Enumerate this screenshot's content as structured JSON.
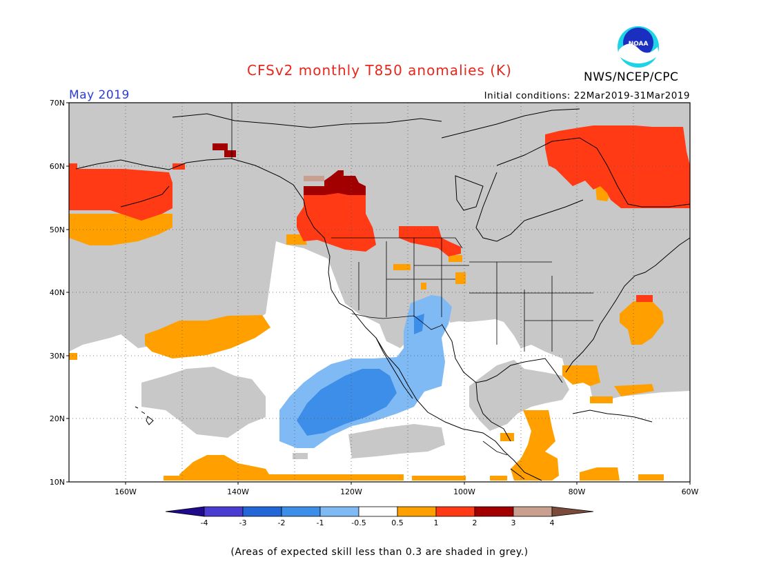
{
  "title": "CFSv2 monthly T850 anomalies (K)",
  "organization": "NWS/NCEP/CPC",
  "logo_text": "NOAA",
  "valid_month": "May 2019",
  "initial_conditions": "Initial conditions: 22Mar2019-31Mar2019",
  "map": {
    "lon_range": [
      -170,
      -60
    ],
    "lat_range": [
      10,
      70
    ],
    "lat_labels": [
      "70N",
      "60N",
      "50N",
      "40N",
      "30N",
      "20N",
      "10N"
    ],
    "lon_labels": [
      "160W",
      "140W",
      "120W",
      "100W",
      "80W",
      "60W"
    ],
    "gridlines": "dotted"
  },
  "colorbar": {
    "labels": [
      "-4",
      "-3",
      "-2",
      "-1",
      "-0.5",
      "0.5",
      "1",
      "2",
      "3",
      "4"
    ],
    "colors": [
      "#1f0a8c",
      "#4a3cd0",
      "#2266d8",
      "#3d8ee8",
      "#80baf5",
      "#ffffff",
      "#ffa000",
      "#ff3a14",
      "#a20000",
      "#c9a08f",
      "#7a4a3a"
    ]
  },
  "skill_colors": {
    "low_skill_grey": "#c8c8c8",
    "neutral": "#ffffff"
  },
  "note": "(Areas of expected skill less than 0.3 are shaded in grey.)"
}
